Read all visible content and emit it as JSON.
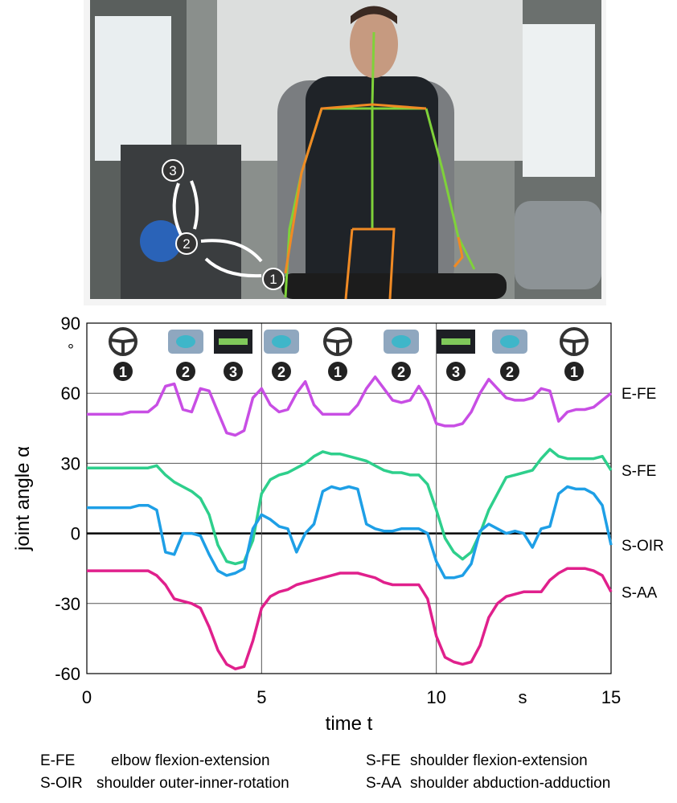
{
  "photo": {
    "markers": [
      "1",
      "2",
      "3"
    ]
  },
  "chart_data": {
    "type": "line",
    "y_label": "joint angle α",
    "x_label": "time t",
    "y_unit": "°",
    "x_unit": "s",
    "icons": [
      "1",
      "2",
      "3",
      "2",
      "1",
      "2",
      "3",
      "2",
      "1"
    ],
    "xlim": [
      0,
      15
    ],
    "xticks": [
      0,
      5,
      10,
      15
    ],
    "ylim": [
      -60,
      90
    ],
    "yticks": [
      -60,
      -30,
      0,
      30,
      60,
      90
    ],
    "grid": true,
    "x": [
      0,
      0.25,
      0.5,
      0.75,
      1,
      1.25,
      1.5,
      1.75,
      2,
      2.25,
      2.5,
      2.75,
      3,
      3.25,
      3.5,
      3.75,
      4,
      4.25,
      4.5,
      4.75,
      5,
      5.25,
      5.5,
      5.75,
      6,
      6.25,
      6.5,
      6.75,
      7,
      7.25,
      7.5,
      7.75,
      8,
      8.25,
      8.5,
      8.75,
      9,
      9.25,
      9.5,
      9.75,
      10,
      10.25,
      10.5,
      10.75,
      11,
      11.25,
      11.5,
      11.75,
      12,
      12.25,
      12.5,
      12.75,
      13,
      13.25,
      13.5,
      13.75,
      14,
      14.25,
      14.5,
      14.75,
      15
    ],
    "series": [
      {
        "name": "E-FE",
        "description": "elbow flexion-extension",
        "color": "#c84ee4",
        "values": [
          51,
          51,
          51,
          51,
          51,
          52,
          52,
          52,
          55,
          63,
          64,
          53,
          52,
          62,
          61,
          52,
          43,
          42,
          44,
          58,
          62,
          55,
          52,
          53,
          60,
          65,
          55,
          51,
          51,
          51,
          51,
          55,
          62,
          67,
          62,
          57,
          56,
          57,
          63,
          57,
          47,
          46,
          46,
          47,
          52,
          60,
          66,
          62,
          58,
          57,
          57,
          58,
          62,
          61,
          48,
          52,
          53,
          53,
          54,
          57,
          60
        ]
      },
      {
        "name": "S-FE",
        "description": "shoulder flexion-extension",
        "color": "#2ecf8c",
        "values": [
          28,
          28,
          28,
          28,
          28,
          28,
          28,
          28,
          29,
          25,
          22,
          20,
          18,
          15,
          8,
          -5,
          -12,
          -13,
          -12,
          -3,
          17,
          23,
          25,
          26,
          28,
          30,
          33,
          35,
          34,
          34,
          33,
          32,
          31,
          29,
          27,
          26,
          26,
          25,
          25,
          21,
          10,
          -2,
          -8,
          -11,
          -8,
          0,
          10,
          17,
          24,
          25,
          26,
          27,
          32,
          36,
          33,
          32,
          32,
          32,
          32,
          33,
          27
        ]
      },
      {
        "name": "S-OIR",
        "description": "shoulder outer-inner-rotation",
        "color": "#1e9fe6",
        "values": [
          11,
          11,
          11,
          11,
          11,
          11,
          12,
          12,
          10,
          -8,
          -9,
          0,
          0,
          -1,
          -9,
          -16,
          -18,
          -17,
          -15,
          2,
          8,
          6,
          3,
          2,
          -8,
          0,
          4,
          18,
          20,
          19,
          20,
          19,
          4,
          2,
          1,
          1,
          2,
          2,
          2,
          0,
          -12,
          -19,
          -19,
          -18,
          -13,
          1,
          4,
          2,
          0,
          1,
          0,
          -6,
          2,
          3,
          17,
          20,
          19,
          19,
          17,
          12,
          -5
        ]
      },
      {
        "name": "S-AA",
        "description": "shoulder abduction-adduction",
        "color": "#e0208c",
        "values": [
          -16,
          -16,
          -16,
          -16,
          -16,
          -16,
          -16,
          -16,
          -18,
          -22,
          -28,
          -29,
          -30,
          -32,
          -40,
          -50,
          -56,
          -58,
          -57,
          -46,
          -32,
          -27,
          -25,
          -24,
          -22,
          -21,
          -20,
          -19,
          -18,
          -17,
          -17,
          -17,
          -18,
          -19,
          -21,
          -22,
          -22,
          -22,
          -22,
          -28,
          -44,
          -53,
          -55,
          -56,
          -55,
          -48,
          -36,
          -30,
          -27,
          -26,
          -25,
          -25,
          -25,
          -20,
          -17,
          -15,
          -15,
          -15,
          -16,
          -18,
          -25
        ]
      }
    ]
  }
}
